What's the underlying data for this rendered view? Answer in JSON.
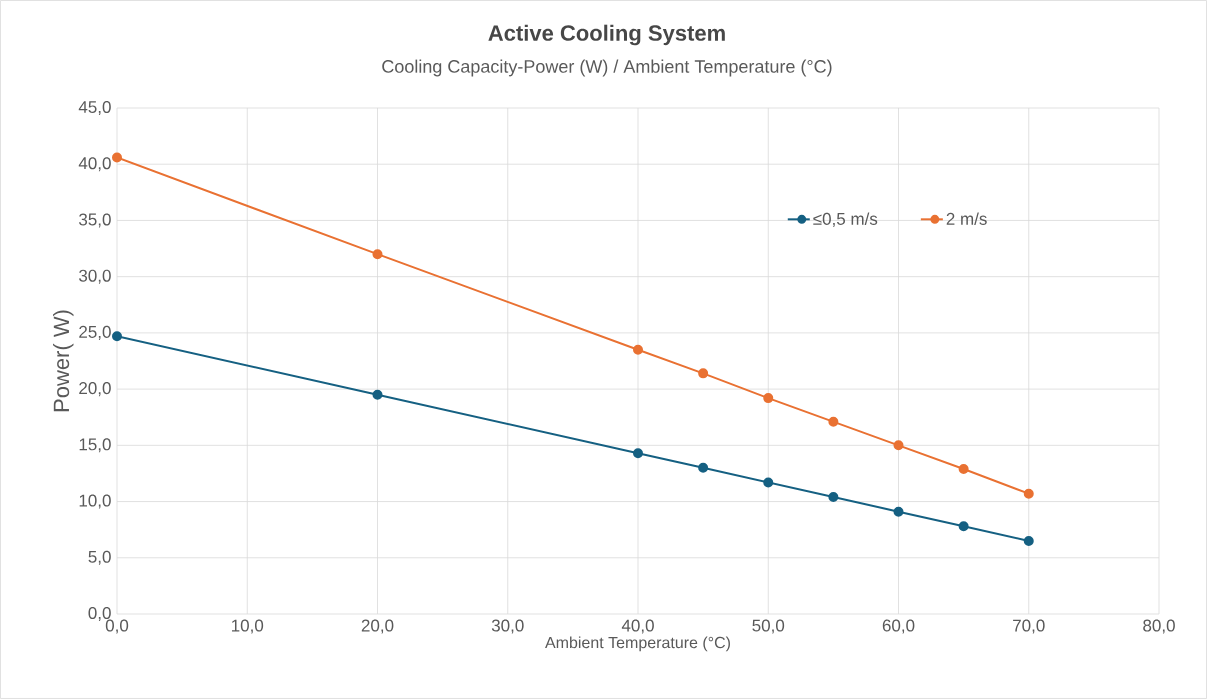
{
  "chart_data": {
    "type": "line",
    "title": "Active Cooling System",
    "subtitle": "Cooling Capacity-Power (W) / Ambient Temperature (°C)",
    "xlabel": "Ambient Temperature  (°C)",
    "ylabel": "Power( W)",
    "x": [
      0,
      20,
      40,
      45,
      50,
      55,
      60,
      65,
      70
    ],
    "series": [
      {
        "name": "≤0,5 m/s",
        "color": "#156082",
        "values": [
          24.7,
          19.5,
          14.3,
          13.0,
          11.7,
          10.4,
          9.1,
          7.8,
          6.5
        ]
      },
      {
        "name": "2 m/s",
        "color": "#e97132",
        "values": [
          40.6,
          32.0,
          23.5,
          21.4,
          19.2,
          17.1,
          15.0,
          12.9,
          10.7
        ]
      }
    ],
    "xlim": [
      0,
      80
    ],
    "ylim": [
      0,
      45
    ],
    "xticks": [
      {
        "value": 0,
        "label": "0,0"
      },
      {
        "value": 10,
        "label": "10,0"
      },
      {
        "value": 20,
        "label": "20,0"
      },
      {
        "value": 30,
        "label": "30,0"
      },
      {
        "value": 40,
        "label": "40,0"
      },
      {
        "value": 50,
        "label": "50,0"
      },
      {
        "value": 60,
        "label": "60,0"
      },
      {
        "value": 70,
        "label": "70,0"
      },
      {
        "value": 80,
        "label": "80,0"
      }
    ],
    "yticks": [
      {
        "value": 0,
        "label": "0,0"
      },
      {
        "value": 5,
        "label": "5,0"
      },
      {
        "value": 10,
        "label": "10,0"
      },
      {
        "value": 15,
        "label": "15,0"
      },
      {
        "value": 20,
        "label": "20,0"
      },
      {
        "value": 25,
        "label": "25,0"
      },
      {
        "value": 30,
        "label": "30,0"
      },
      {
        "value": 35,
        "label": "35,0"
      },
      {
        "value": 40,
        "label": "40,0"
      },
      {
        "value": 45,
        "label": "45,0"
      }
    ],
    "grid": true,
    "legend": "top right",
    "marker": "circle",
    "line_style": "solid"
  }
}
